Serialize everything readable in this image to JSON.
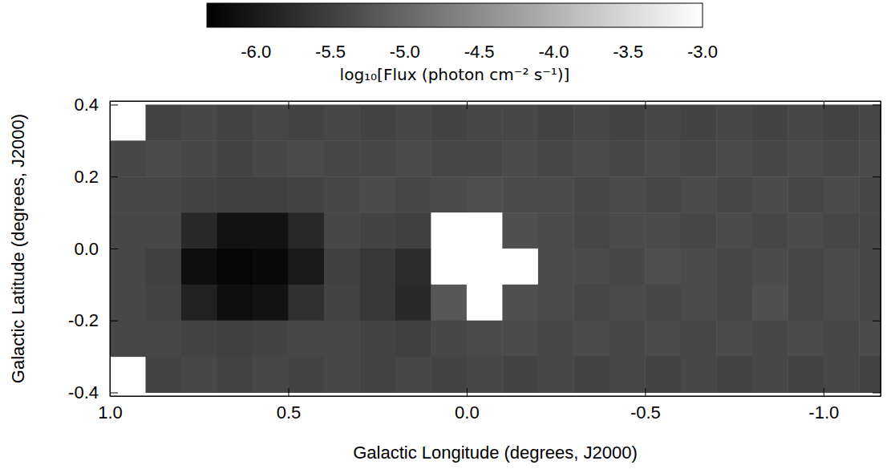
{
  "chart_data": {
    "type": "heatmap",
    "xlabel": "Galactic Longitude (degrees, J2000)",
    "ylabel": "Galactic Latitude (degrees, J2000)",
    "x": [
      0.95,
      0.85,
      0.75,
      0.65,
      0.55,
      0.45,
      0.35,
      0.25,
      0.15,
      0.05,
      -0.05,
      -0.15,
      -0.25,
      -0.35,
      -0.45,
      -0.55,
      -0.65,
      -0.75,
      -0.85,
      -0.95,
      -1.05,
      -1.15
    ],
    "y": [
      0.35,
      0.25,
      0.15,
      0.05,
      -0.05,
      -0.15,
      -0.25,
      -0.35
    ],
    "values": [
      [
        null,
        -5.45,
        -5.4,
        -5.45,
        -5.4,
        -5.45,
        -5.4,
        -5.45,
        -5.4,
        -5.45,
        -5.4,
        -5.4,
        -5.45,
        -5.4,
        -5.45,
        -5.4,
        -5.45,
        -5.4,
        -5.45,
        -5.4,
        -5.45,
        -5.4
      ],
      [
        -5.4,
        -5.35,
        -5.4,
        -5.45,
        -5.4,
        -5.35,
        -5.4,
        -5.4,
        -5.35,
        -5.4,
        -5.4,
        -5.35,
        -5.4,
        -5.35,
        -5.4,
        -5.35,
        -5.4,
        -5.35,
        -5.4,
        -5.35,
        -5.4,
        -5.35
      ],
      [
        -5.4,
        -5.4,
        -5.45,
        -5.5,
        -5.5,
        -5.45,
        -5.4,
        -5.35,
        -5.4,
        -5.35,
        -5.3,
        -5.35,
        -5.35,
        -5.4,
        -5.35,
        -5.4,
        -5.35,
        -5.4,
        -5.35,
        -5.4,
        -5.35,
        -5.4
      ],
      [
        -5.4,
        -5.4,
        -5.8,
        -6.1,
        -6.1,
        -5.8,
        -5.4,
        -5.45,
        -5.5,
        -3.0,
        -3.0,
        -5.3,
        -5.35,
        -5.4,
        -5.35,
        -5.35,
        -5.4,
        -5.35,
        -5.4,
        -5.35,
        -5.4,
        -5.4
      ],
      [
        -5.4,
        -5.5,
        -6.15,
        -6.25,
        -6.2,
        -6.0,
        -5.5,
        -5.6,
        -5.75,
        -3.0,
        -3.0,
        -3.0,
        -5.35,
        -5.35,
        -5.4,
        -5.3,
        -5.35,
        -5.4,
        -5.35,
        -5.4,
        -5.35,
        -5.4
      ],
      [
        -5.4,
        -5.45,
        -5.9,
        -6.15,
        -6.1,
        -5.7,
        -5.45,
        -5.6,
        -5.8,
        -5.2,
        -3.0,
        -5.3,
        -5.35,
        -5.4,
        -5.35,
        -5.4,
        -5.35,
        -5.4,
        -5.3,
        -5.4,
        -5.35,
        -5.4
      ],
      [
        -5.4,
        -5.4,
        -5.45,
        -5.5,
        -5.45,
        -5.4,
        -5.4,
        -5.45,
        -5.5,
        -5.4,
        -5.35,
        -5.35,
        -5.4,
        -5.35,
        -5.4,
        -5.35,
        -5.4,
        -5.35,
        -5.4,
        -5.35,
        -5.4,
        -5.35
      ],
      [
        null,
        -5.45,
        -5.4,
        -5.45,
        -5.4,
        -5.45,
        -5.4,
        -5.45,
        -5.4,
        -5.45,
        -5.4,
        -5.45,
        -5.4,
        -5.45,
        -5.4,
        -5.45,
        -5.4,
        -5.45,
        -5.4,
        -5.45,
        -5.4,
        -5.45
      ]
    ],
    "xlim": [
      1.0,
      -1.16
    ],
    "ylim": [
      -0.41,
      0.41
    ],
    "xticks": [
      {
        "value": 1,
        "label": "1.0"
      },
      0.5,
      {
        "value": 0,
        "label": "0.0"
      },
      -0.5,
      {
        "value": -1,
        "label": "-1.0"
      }
    ],
    "yticks": [
      0.4,
      0.2,
      {
        "value": 0,
        "label": "0.0"
      },
      -0.2,
      -0.4
    ],
    "colorbar": {
      "label": "log₁₀[Flux (photon cm⁻² s⁻¹)]",
      "range": [
        -6.33,
        -3.0
      ],
      "ticks": [
        {
          "value": -6,
          "label": "-6.0"
        },
        -5.5,
        {
          "value": -5,
          "label": "-5.0"
        },
        -4.5,
        {
          "value": -4,
          "label": "-4.0"
        },
        -3.5,
        {
          "value": -3,
          "label": "-3.0"
        }
      ]
    }
  }
}
